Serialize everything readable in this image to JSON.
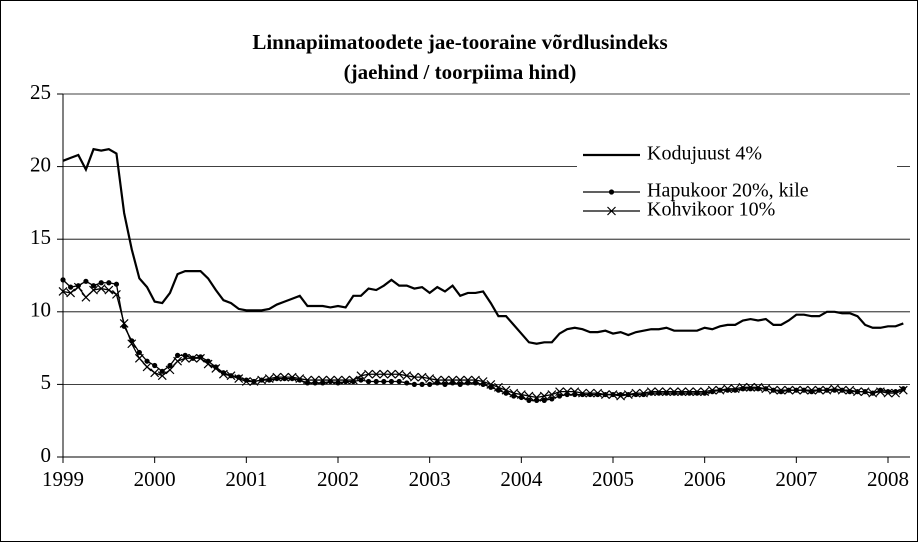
{
  "chart_data": {
    "type": "line",
    "title": "Linnapiimatoodete jae-tooraine võrdlusindeks",
    "subtitle": "(jaehind / toorpiima hind)",
    "x": [
      1999,
      1999.083,
      1999.167,
      1999.25,
      1999.333,
      1999.417,
      1999.5,
      1999.583,
      1999.667,
      1999.75,
      1999.833,
      1999.917,
      2000,
      2000.083,
      2000.167,
      2000.25,
      2000.333,
      2000.417,
      2000.5,
      2000.583,
      2000.667,
      2000.75,
      2000.833,
      2000.917,
      2001,
      2001.083,
      2001.167,
      2001.25,
      2001.333,
      2001.417,
      2001.5,
      2001.583,
      2001.667,
      2001.75,
      2001.833,
      2001.917,
      2002,
      2002.083,
      2002.167,
      2002.25,
      2002.333,
      2002.417,
      2002.5,
      2002.583,
      2002.667,
      2002.75,
      2002.833,
      2002.917,
      2003,
      2003.083,
      2003.167,
      2003.25,
      2003.333,
      2003.417,
      2003.5,
      2003.583,
      2003.667,
      2003.75,
      2003.833,
      2003.917,
      2004,
      2004.083,
      2004.167,
      2004.25,
      2004.333,
      2004.417,
      2004.5,
      2004.583,
      2004.667,
      2004.75,
      2004.833,
      2004.917,
      2005,
      2005.083,
      2005.167,
      2005.25,
      2005.333,
      2005.417,
      2005.5,
      2005.583,
      2005.667,
      2005.75,
      2005.833,
      2005.917,
      2006,
      2006.083,
      2006.167,
      2006.25,
      2006.333,
      2006.417,
      2006.5,
      2006.583,
      2006.667,
      2006.75,
      2006.833,
      2006.917,
      2007,
      2007.083,
      2007.167,
      2007.25,
      2007.333,
      2007.417,
      2007.5,
      2007.583,
      2007.667,
      2007.75,
      2007.833,
      2007.917,
      2008,
      2008.083,
      2008.167
    ],
    "series": [
      {
        "name": "Kodujuust 4%",
        "color": "#000000",
        "marker": "none",
        "values": [
          20.4,
          20.6,
          20.8,
          19.8,
          21.2,
          21.1,
          21.2,
          20.9,
          16.8,
          14.3,
          12.3,
          11.7,
          10.7,
          10.6,
          11.3,
          12.6,
          12.8,
          12.8,
          12.8,
          12.3,
          11.5,
          10.8,
          10.6,
          10.2,
          10.1,
          10.1,
          10.1,
          10.2,
          10.5,
          10.7,
          10.9,
          11.1,
          10.4,
          10.4,
          10.4,
          10.3,
          10.4,
          10.3,
          11.1,
          11.1,
          11.6,
          11.5,
          11.8,
          12.2,
          11.8,
          11.8,
          11.6,
          11.7,
          11.3,
          11.7,
          11.4,
          11.8,
          11.1,
          11.3,
          11.3,
          11.4,
          10.6,
          9.7,
          9.7,
          9.1,
          8.5,
          7.9,
          7.8,
          7.9,
          7.9,
          8.5,
          8.8,
          8.9,
          8.8,
          8.6,
          8.6,
          8.7,
          8.5,
          8.6,
          8.4,
          8.6,
          8.7,
          8.8,
          8.8,
          8.9,
          8.7,
          8.7,
          8.7,
          8.7,
          8.9,
          8.8,
          9.0,
          9.1,
          9.1,
          9.4,
          9.5,
          9.4,
          9.5,
          9.1,
          9.1,
          9.4,
          9.8,
          9.8,
          9.7,
          9.7,
          10.0,
          10.0,
          9.9,
          9.9,
          9.7,
          9.1,
          8.9,
          8.9,
          9.0,
          9.0,
          9.2
        ]
      },
      {
        "name": "Hapukoor 20%, kile",
        "color": "#000000",
        "marker": "dot",
        "values": [
          12.2,
          11.7,
          11.8,
          12.1,
          11.8,
          12.0,
          12.0,
          11.9,
          9.0,
          8.0,
          7.2,
          6.6,
          6.3,
          5.9,
          6.3,
          7.0,
          7.0,
          6.8,
          6.9,
          6.6,
          6.2,
          5.8,
          5.6,
          5.5,
          5.3,
          5.2,
          5.3,
          5.3,
          5.4,
          5.4,
          5.4,
          5.3,
          5.1,
          5.1,
          5.1,
          5.2,
          5.1,
          5.2,
          5.2,
          5.3,
          5.2,
          5.2,
          5.2,
          5.2,
          5.2,
          5.1,
          5.0,
          5.0,
          5.0,
          5.1,
          5.0,
          5.1,
          5.0,
          5.1,
          5.1,
          5.0,
          4.8,
          4.6,
          4.4,
          4.2,
          4.1,
          3.9,
          3.9,
          3.9,
          4.0,
          4.2,
          4.3,
          4.3,
          4.3,
          4.3,
          4.3,
          4.3,
          4.3,
          4.3,
          4.3,
          4.3,
          4.3,
          4.4,
          4.4,
          4.4,
          4.4,
          4.4,
          4.4,
          4.4,
          4.4,
          4.5,
          4.6,
          4.6,
          4.6,
          4.7,
          4.7,
          4.7,
          4.7,
          4.6,
          4.5,
          4.6,
          4.6,
          4.6,
          4.5,
          4.6,
          4.6,
          4.6,
          4.6,
          4.5,
          4.5,
          4.5,
          4.4,
          4.6,
          4.5,
          4.5,
          4.7
        ]
      },
      {
        "name": "Kohvikoor 10%",
        "color": "#000000",
        "marker": "cross",
        "values": [
          11.4,
          11.3,
          11.7,
          11.0,
          11.5,
          11.6,
          11.5,
          11.2,
          9.2,
          7.8,
          6.8,
          6.2,
          5.8,
          5.6,
          6.0,
          6.6,
          6.8,
          6.8,
          6.8,
          6.4,
          6.1,
          5.7,
          5.6,
          5.4,
          5.2,
          5.2,
          5.3,
          5.4,
          5.5,
          5.5,
          5.5,
          5.4,
          5.3,
          5.3,
          5.3,
          5.3,
          5.3,
          5.3,
          5.3,
          5.6,
          5.7,
          5.7,
          5.7,
          5.7,
          5.7,
          5.6,
          5.5,
          5.5,
          5.4,
          5.3,
          5.3,
          5.3,
          5.3,
          5.3,
          5.3,
          5.2,
          5.0,
          4.8,
          4.6,
          4.4,
          4.3,
          4.2,
          4.1,
          4.2,
          4.3,
          4.5,
          4.5,
          4.5,
          4.4,
          4.4,
          4.4,
          4.3,
          4.3,
          4.2,
          4.3,
          4.4,
          4.4,
          4.5,
          4.5,
          4.5,
          4.5,
          4.5,
          4.5,
          4.5,
          4.5,
          4.6,
          4.6,
          4.7,
          4.7,
          4.8,
          4.8,
          4.8,
          4.7,
          4.6,
          4.6,
          4.6,
          4.6,
          4.6,
          4.6,
          4.6,
          4.6,
          4.7,
          4.6,
          4.6,
          4.5,
          4.5,
          4.4,
          4.5,
          4.4,
          4.4,
          4.6
        ]
      }
    ],
    "xlim": [
      1999,
      2008.24
    ],
    "xticks": [
      1999,
      2000,
      2001,
      2002,
      2003,
      2004,
      2005,
      2006,
      2007,
      2008
    ],
    "ylim": [
      0,
      25
    ],
    "yticks": [
      0,
      5,
      10,
      15,
      20,
      25
    ],
    "grid": true,
    "legend": "top-right"
  }
}
